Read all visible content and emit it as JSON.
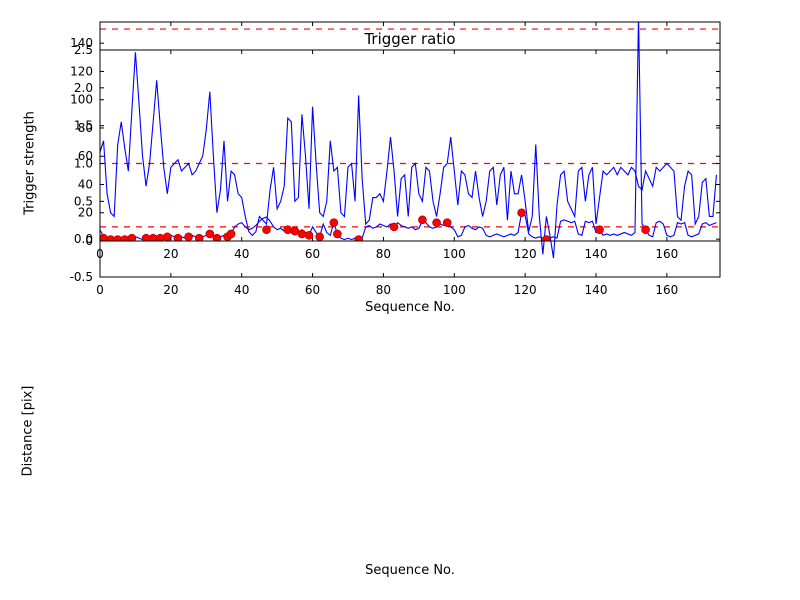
{
  "figure": {
    "background": "#ffffff",
    "axes_color": "#000000"
  },
  "chart_data": [
    {
      "type": "line",
      "title": "Trigger ratio",
      "xlabel": "Sequence No.",
      "ylabel": "Trigger strength",
      "xlim": [
        0,
        175
      ],
      "ylim": [
        -0.5,
        2.5
      ],
      "xticks": [
        0,
        20,
        40,
        60,
        80,
        100,
        120,
        140,
        160
      ],
      "xtick_labels": [
        "0",
        "20",
        "40",
        "60",
        "80",
        "100",
        "120",
        "140",
        "160"
      ],
      "yticks": [
        -0.5,
        0.0,
        0.5,
        1.0,
        1.5,
        2.0,
        2.5
      ],
      "ytick_labels": [
        "-0.5",
        "0.0",
        "0.5",
        "1.0",
        "1.5",
        "2.0",
        "2.5"
      ],
      "line_color": "#0000ff",
      "threshold_color": "#ff0000",
      "thresholds": [
        1.0
      ],
      "grid": false,
      "legend": null,
      "values": [
        1.15,
        1.3,
        0.6,
        0.35,
        0.3,
        1.25,
        1.55,
        1.2,
        0.9,
        1.7,
        2.47,
        1.8,
        1.1,
        0.7,
        1.0,
        1.55,
        2.1,
        1.5,
        0.95,
        0.6,
        0.95,
        1.0,
        1.05,
        0.9,
        0.95,
        1.0,
        0.85,
        0.9,
        1.0,
        1.1,
        1.45,
        1.95,
        1.1,
        0.35,
        0.65,
        1.3,
        0.5,
        0.9,
        0.85,
        0.6,
        0.55,
        0.3,
        0.1,
        0.05,
        0.1,
        0.3,
        0.25,
        0.2,
        0.65,
        0.95,
        0.4,
        0.5,
        0.7,
        1.6,
        1.55,
        0.5,
        0.55,
        1.65,
        1.1,
        0.4,
        1.75,
        1.0,
        0.35,
        0.3,
        0.5,
        1.3,
        0.9,
        0.95,
        0.35,
        0.3,
        0.95,
        1.0,
        0.5,
        1.9,
        0.8,
        0.2,
        0.25,
        0.55,
        0.55,
        0.6,
        0.5,
        0.9,
        1.35,
        0.9,
        0.3,
        0.8,
        0.85,
        0.3,
        0.95,
        1.0,
        0.6,
        0.5,
        0.95,
        0.9,
        0.5,
        0.3,
        0.6,
        0.95,
        1.0,
        1.35,
        0.9,
        0.45,
        0.9,
        0.85,
        0.6,
        0.55,
        0.9,
        0.55,
        0.3,
        0.5,
        0.9,
        0.95,
        0.45,
        0.85,
        0.95,
        0.25,
        0.9,
        0.6,
        0.6,
        0.85,
        0.5,
        0.1,
        0.3,
        1.25,
        0.3,
        -0.2,
        0.3,
        0.05,
        -0.25,
        0.45,
        0.85,
        0.9,
        0.5,
        0.4,
        0.3,
        0.9,
        0.95,
        0.5,
        0.85,
        0.95,
        0.2,
        0.55,
        0.9,
        0.85,
        0.9,
        0.95,
        0.85,
        0.95,
        0.9,
        0.85,
        0.95,
        0.9,
        0.7,
        0.65,
        0.9,
        0.8,
        0.7,
        0.95,
        0.9,
        0.95,
        1.0,
        0.95,
        0.9,
        0.3,
        0.25,
        0.7,
        0.9,
        0.85,
        0.2,
        0.3,
        0.75,
        0.8,
        0.3,
        0.3,
        0.85
      ]
    },
    {
      "type": "line+scatter",
      "title": "",
      "xlabel": "Sequence No.",
      "ylabel": "Distance [pix]",
      "xlim": [
        0,
        175
      ],
      "ylim": [
        0,
        155
      ],
      "xticks": [
        0,
        20,
        40,
        60,
        80,
        100,
        120,
        140,
        160
      ],
      "xtick_labels": [
        "0",
        "20",
        "40",
        "60",
        "80",
        "100",
        "120",
        "140",
        "160"
      ],
      "yticks": [
        0,
        20,
        40,
        60,
        80,
        100,
        120,
        140
      ],
      "ytick_labels": [
        "0",
        "20",
        "40",
        "60",
        "80",
        "100",
        "120",
        "140"
      ],
      "line_color": "#0000ff",
      "threshold_color": "#ff0000",
      "thresholds": [
        150,
        10
      ],
      "grid": false,
      "legend": null,
      "values": [
        8,
        3,
        2,
        1,
        2,
        1,
        2,
        1,
        1,
        2,
        3,
        2,
        1,
        2,
        3,
        2,
        2,
        3,
        2,
        3,
        4,
        3,
        2,
        3,
        2,
        3,
        4,
        3,
        2,
        3,
        4,
        5,
        3,
        2,
        3,
        4,
        3,
        5,
        10,
        12,
        13,
        10,
        8,
        9,
        11,
        14,
        16,
        17,
        14,
        10,
        8,
        9,
        7,
        8,
        6,
        7,
        5,
        8,
        6,
        4,
        10,
        6,
        3,
        12,
        6,
        4,
        13,
        5,
        2,
        1,
        2,
        1,
        2,
        3,
        2,
        10,
        11,
        9,
        10,
        12,
        11,
        10,
        12,
        9,
        13,
        11,
        10,
        9,
        10,
        8,
        9,
        14,
        13,
        10,
        9,
        10,
        12,
        11,
        13,
        10,
        8,
        3,
        4,
        10,
        11,
        9,
        8,
        10,
        9,
        4,
        3,
        4,
        5,
        4,
        3,
        4,
        5,
        4,
        6,
        20,
        18,
        5,
        3,
        2,
        3,
        2,
        1,
        2,
        3,
        2,
        14,
        15,
        14,
        13,
        14,
        5,
        4,
        14,
        13,
        14,
        6,
        8,
        4,
        5,
        4,
        5,
        4,
        5,
        6,
        5,
        4,
        6,
        160,
        12,
        8,
        4,
        3,
        13,
        14,
        12,
        4,
        3,
        4,
        13,
        12,
        13,
        4,
        3,
        4,
        5,
        12,
        13,
        11,
        12,
        13
      ],
      "scatter": {
        "color": "#ff0000",
        "points": [
          [
            1,
            2
          ],
          [
            3,
            1
          ],
          [
            5,
            1
          ],
          [
            7,
            1
          ],
          [
            9,
            2
          ],
          [
            13,
            2
          ],
          [
            15,
            2
          ],
          [
            17,
            2
          ],
          [
            19,
            3
          ],
          [
            22,
            2
          ],
          [
            25,
            3
          ],
          [
            28,
            2
          ],
          [
            31,
            5
          ],
          [
            33,
            2
          ],
          [
            36,
            3
          ],
          [
            37,
            5
          ],
          [
            47,
            8
          ],
          [
            53,
            8
          ],
          [
            55,
            7
          ],
          [
            57,
            5
          ],
          [
            59,
            4
          ],
          [
            62,
            3
          ],
          [
            66,
            13
          ],
          [
            67,
            5
          ],
          [
            73,
            1
          ],
          [
            83,
            10
          ],
          [
            91,
            15
          ],
          [
            95,
            13
          ],
          [
            98,
            13
          ],
          [
            119,
            20
          ],
          [
            126,
            1
          ],
          [
            141,
            8
          ],
          [
            154,
            8
          ]
        ]
      }
    }
  ]
}
